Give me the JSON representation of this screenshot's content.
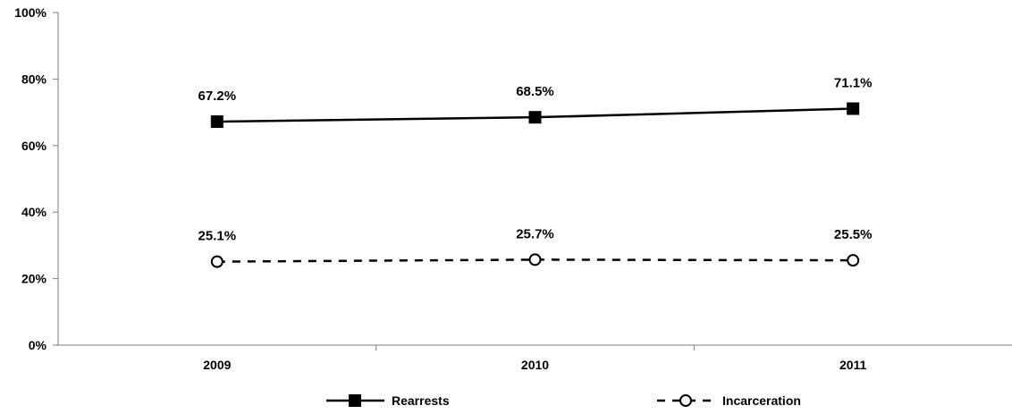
{
  "chart_data": {
    "type": "line",
    "x": [
      "2009",
      "2010",
      "2011"
    ],
    "series": [
      {
        "name": "Rearrests",
        "values": [
          67.2,
          68.5,
          71.1
        ],
        "labels": [
          "67.2%",
          "68.5%",
          "71.1%"
        ],
        "line_style": "solid",
        "marker": "filled-square",
        "color": "#000000"
      },
      {
        "name": "Incarceration",
        "values": [
          25.1,
          25.7,
          25.5
        ],
        "labels": [
          "25.1%",
          "25.7%",
          "25.5%"
        ],
        "line_style": "dashed",
        "marker": "open-circle",
        "color": "#000000"
      }
    ],
    "ylim": [
      0,
      100
    ],
    "yticks": [
      0,
      20,
      40,
      60,
      80,
      100
    ],
    "ytick_labels": [
      "0%",
      "20%",
      "40%",
      "60%",
      "80%",
      "100%"
    ],
    "grid": false,
    "legend_position": "bottom",
    "title": "",
    "xlabel": "",
    "ylabel": ""
  }
}
